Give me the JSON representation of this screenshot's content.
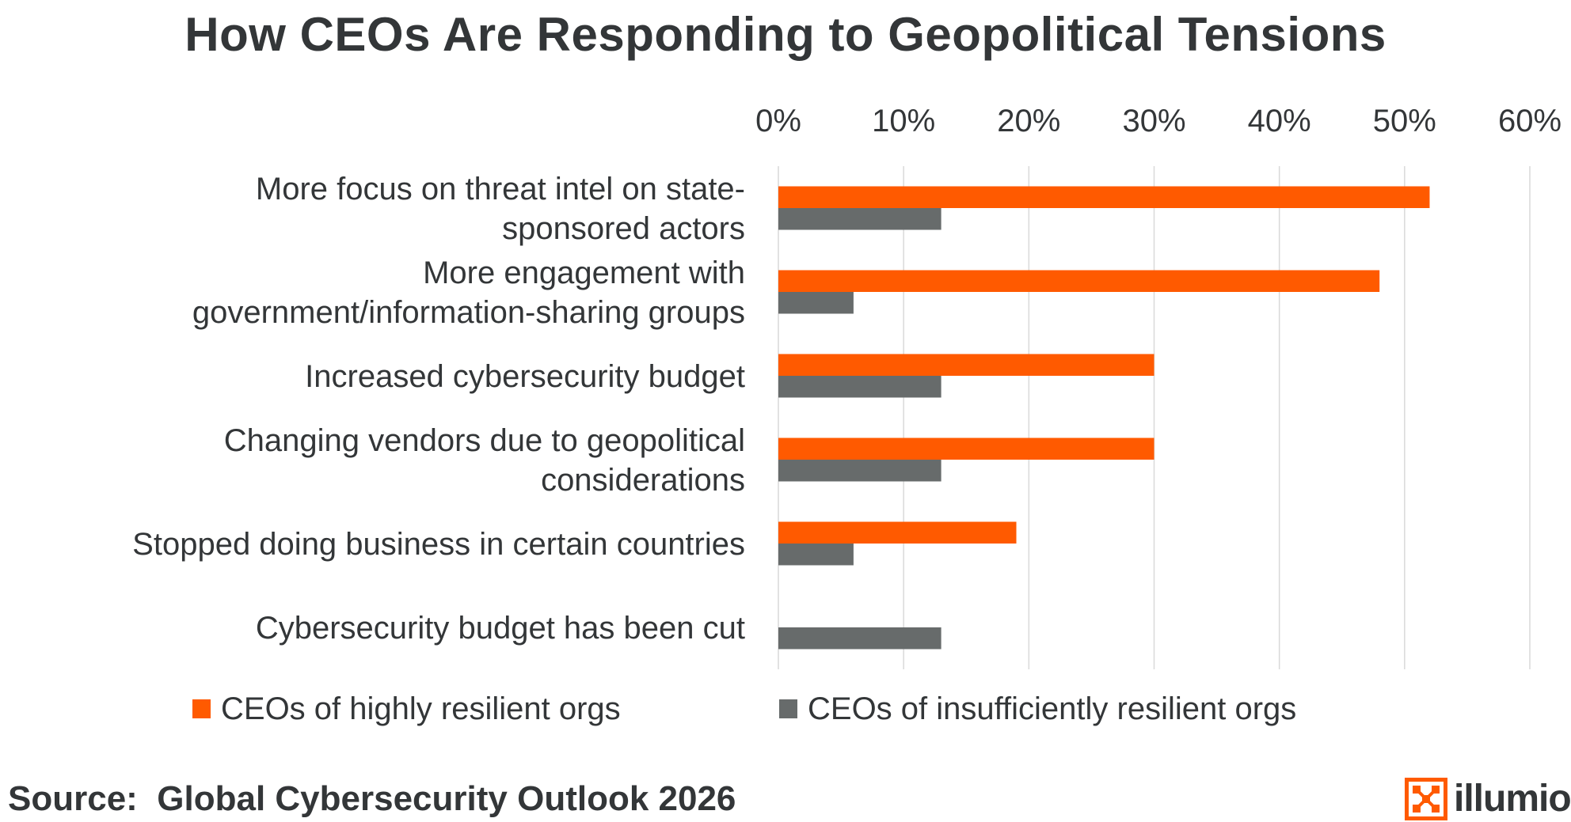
{
  "chart_data": {
    "type": "bar",
    "orientation": "horizontal",
    "title": "How CEOs Are Responding to Geopolitical Tensions",
    "xlabel": "",
    "ylabel": "",
    "xlim": [
      0,
      60
    ],
    "x_ticks": [
      "0%",
      "10%",
      "20%",
      "30%",
      "40%",
      "50%",
      "60%"
    ],
    "x_tick_values": [
      0,
      10,
      20,
      30,
      40,
      50,
      60
    ],
    "x_axis_position": "top",
    "grid": true,
    "categories": [
      [
        "More focus on threat intel on state-",
        "sponsored actors"
      ],
      [
        "More engagement with",
        "government/information-sharing groups"
      ],
      [
        "Increased cybersecurity budget"
      ],
      [
        "Changing vendors due to geopolitical",
        "considerations"
      ],
      [
        "Stopped doing business in certain countries"
      ],
      [
        "Cybersecurity budget has been cut"
      ]
    ],
    "series": [
      {
        "name": "CEOs of highly resilient orgs",
        "color": "#FF5A00",
        "values": [
          52,
          48,
          30,
          30,
          19,
          0
        ]
      },
      {
        "name": "CEOs of insufficiently resilient orgs",
        "color": "#676B6B",
        "values": [
          13,
          6,
          13,
          13,
          6,
          13
        ]
      }
    ],
    "legend_position": "bottom"
  },
  "footer": {
    "source": "Source:  Global Cybersecurity Outlook 2026",
    "brand": "illumio",
    "brand_color": "#FF5A00"
  }
}
